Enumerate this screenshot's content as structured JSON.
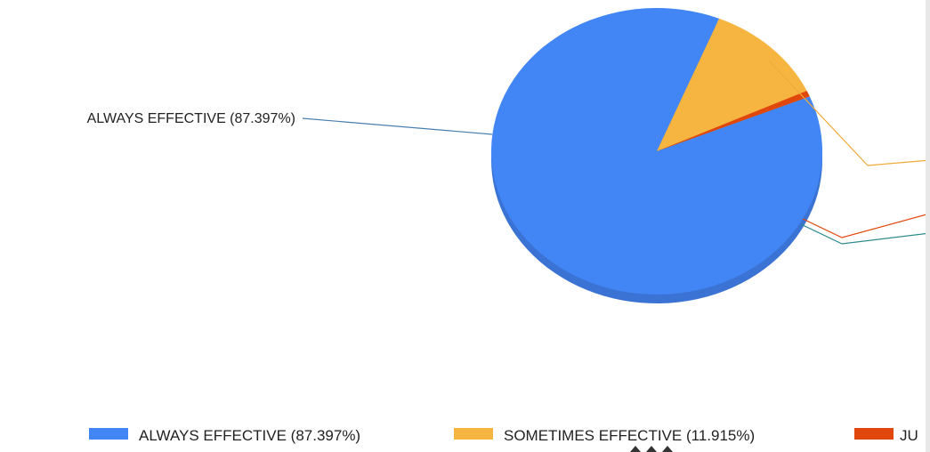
{
  "chart_data": {
    "type": "pie",
    "title": "",
    "slices": [
      {
        "label": "ALWAYS EFFECTIVE (87.397%)",
        "value": 87.397,
        "color": "#4285f4",
        "shade": "#3a73d3",
        "leader": "#4a7fae"
      },
      {
        "label": "SOMETIMES EFFECTIVE (11.915%)",
        "value": 11.915,
        "color": "#f6b541",
        "shade": "#d99a30",
        "leader": "#f0a93a"
      },
      {
        "label": "JU",
        "value": 0.688,
        "color": "#e0470c",
        "shade": "#b8390a",
        "leader": "#e0470c"
      }
    ],
    "legend": {
      "position": "bottom"
    },
    "extra_leader_color": "#2e8b8b"
  }
}
